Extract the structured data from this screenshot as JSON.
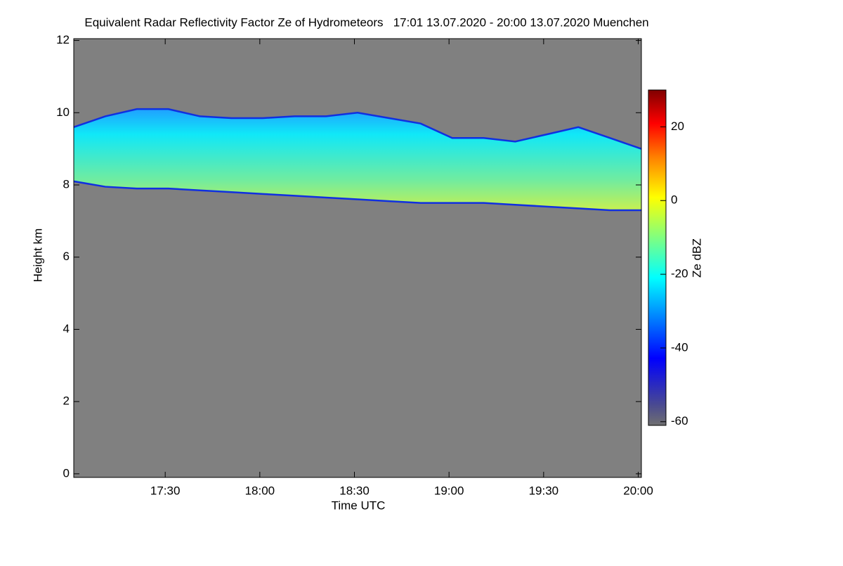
{
  "chart_data": {
    "type": "heatmap",
    "title": "Equivalent Radar Reflectivity Factor Ze of Hydrometeors   17:01 13.07.2020 - 20:00 13.07.2020 Muenchen",
    "x_label": "Time UTC",
    "y_label": "Height km",
    "colorbar_label": "Ze dBZ",
    "xlim": [
      1021,
      1201
    ],
    "xticks": [
      {
        "value": 1050,
        "label": "17:30"
      },
      {
        "value": 1080,
        "label": "18:00"
      },
      {
        "value": 1110,
        "label": "18:30"
      },
      {
        "value": 1140,
        "label": "19:00"
      },
      {
        "value": 1170,
        "label": "19:30"
      },
      {
        "value": 1200,
        "label": "20:00"
      }
    ],
    "ylim": [
      -0.1,
      12.05
    ],
    "yticks": [
      0,
      2,
      4,
      6,
      8,
      10,
      12
    ],
    "clim": [
      -61,
      30
    ],
    "cticks": [
      -60,
      -40,
      -20,
      0,
      20
    ],
    "background": "#808080",
    "x": [
      1021,
      1031,
      1041,
      1051,
      1061,
      1071,
      1081,
      1091,
      1101,
      1111,
      1121,
      1131,
      1141,
      1151,
      1161,
      1171,
      1181,
      1191,
      1201
    ],
    "cloud_top": [
      9.6,
      9.9,
      10.1,
      10.1,
      9.9,
      9.85,
      9.85,
      9.9,
      9.9,
      10.0,
      9.85,
      9.7,
      9.3,
      9.3,
      9.2,
      9.4,
      9.6,
      9.3,
      9.0
    ],
    "cloud_base": [
      8.1,
      7.95,
      7.9,
      7.9,
      7.85,
      7.8,
      7.75,
      7.7,
      7.65,
      7.6,
      7.55,
      7.5,
      7.5,
      7.5,
      7.45,
      7.4,
      7.35,
      7.3,
      7.3
    ]
  }
}
